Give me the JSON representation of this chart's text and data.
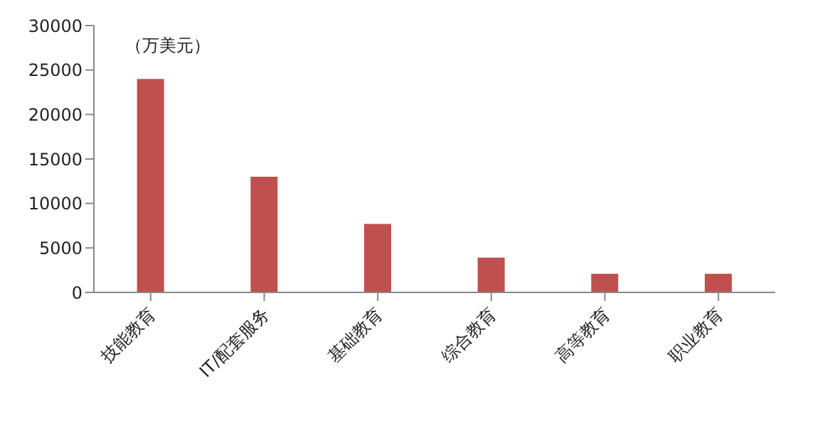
{
  "chart_data": {
    "type": "bar",
    "ylabel": "（万美元）",
    "categories": [
      "技能教育",
      "IT/配套服务",
      "基础教育",
      "综合教育",
      "高等教育",
      "职业教育"
    ],
    "values": [
      24000,
      13000,
      7700,
      3900,
      2100,
      2100
    ],
    "color": "#c0504d",
    "ylim": [
      0,
      30000
    ],
    "yticks": [
      0,
      5000,
      10000,
      15000,
      20000,
      25000,
      30000
    ],
    "grid": false,
    "legend": false
  }
}
